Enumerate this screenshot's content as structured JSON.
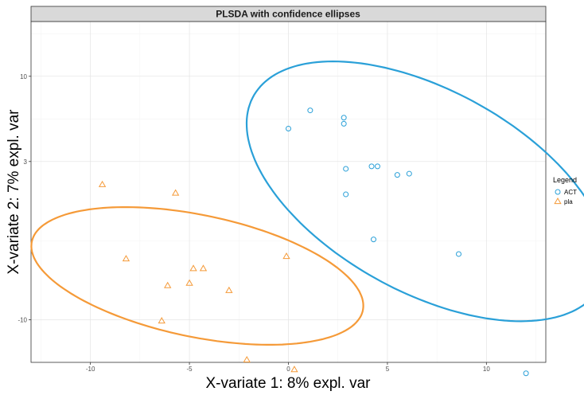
{
  "chart_data": {
    "type": "scatter",
    "title": "PLSDA with confidence ellipses",
    "xlabel": "X-variate 1: 8% expl. var",
    "ylabel": "X-variate 2: 7% expl. var",
    "xlim": [
      -13,
      13
    ],
    "ylim": [
      -13.5,
      14.5
    ],
    "x_ticks": [
      -10,
      -5,
      0,
      5,
      10
    ],
    "y_ticks": [
      -10,
      3,
      10
    ],
    "grid": true,
    "legend_title": "Legend",
    "legend_position": "right",
    "series": [
      {
        "name": "ACT",
        "marker": "circle",
        "color": "#2aa0d8",
        "x": [
          0.0,
          1.1,
          2.8,
          2.8,
          2.9,
          2.9,
          4.2,
          4.3,
          4.5,
          5.5,
          6.1,
          8.6,
          12.0
        ],
        "y": [
          5.7,
          7.2,
          6.1,
          6.6,
          2.4,
          0.3,
          2.6,
          -3.4,
          2.6,
          1.9,
          2.0,
          -4.6,
          -14.4
        ],
        "ellipse": {
          "center": [
            7.0,
            0.55
          ],
          "semi_axes": [
            12.3,
            6.75
          ],
          "angle_deg": -53.5
        }
      },
      {
        "name": "pla",
        "marker": "triangle",
        "color": "#f59a38",
        "x": [
          -9.4,
          -8.2,
          -6.1,
          -6.4,
          -5.7,
          -5.0,
          -4.8,
          -4.3,
          -3.0,
          -2.1,
          -0.1,
          0.3
        ],
        "y": [
          1.1,
          -5.0,
          -7.2,
          -10.1,
          0.4,
          -7.0,
          -5.8,
          -5.8,
          -7.6,
          -13.3,
          -4.8,
          -14.1
        ],
        "ellipse": {
          "center": [
            -4.6,
            -6.4
          ],
          "semi_axes": [
            8.9,
            4.8
          ],
          "angle_deg": -23.5
        }
      }
    ]
  }
}
